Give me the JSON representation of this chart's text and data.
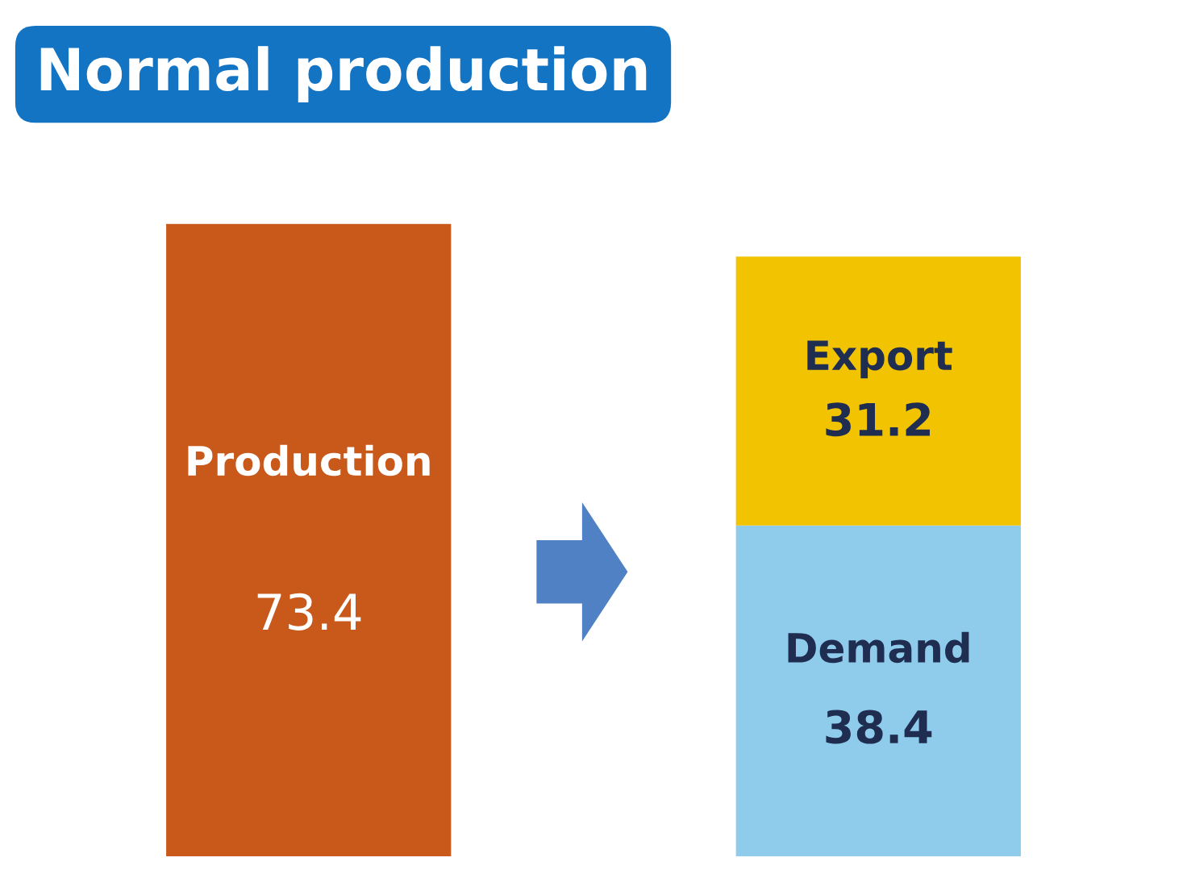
{
  "chart_data": {
    "type": "bar",
    "title": "Normal production",
    "categories": [
      null,
      null
    ],
    "stacked": true,
    "data_labels": true,
    "legend": false,
    "grid": false,
    "series": [
      {
        "name": "Production",
        "color": "#c9581b",
        "values": [
          73.4,
          null
        ]
      },
      {
        "name": "Demand",
        "color": "#8fcbea",
        "values": [
          null,
          38.4
        ]
      },
      {
        "name": "Export",
        "color": "#f1c300",
        "values": [
          null,
          31.2
        ]
      }
    ]
  }
}
